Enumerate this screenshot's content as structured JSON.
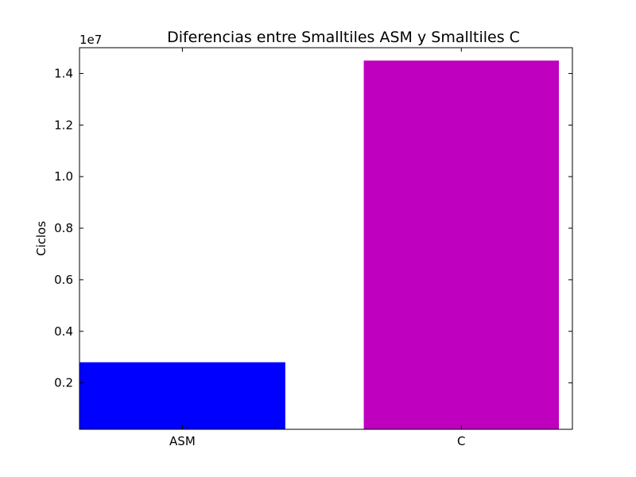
{
  "chart_data": {
    "type": "bar",
    "title": "Diferencias entre Smalltiles ASM y Smalltiles C",
    "xlabel": "",
    "ylabel": "Ciclos",
    "y_offset_label": "1e7",
    "y_scale": 10000000,
    "ylim": [
      0.02,
      1.5
    ],
    "y_ticks": [
      0.2,
      0.4,
      0.6,
      0.8,
      1.0,
      1.2,
      1.4
    ],
    "y_tick_labels": [
      "0.2",
      "0.4",
      "0.6",
      "0.8",
      "1.0",
      "1.2",
      "1.4"
    ],
    "categories": [
      "ASM",
      "C"
    ],
    "values": [
      0.28,
      1.45
    ],
    "colors": [
      "#0000ff",
      "#bf00bf"
    ],
    "grid": false,
    "legend": "none"
  }
}
